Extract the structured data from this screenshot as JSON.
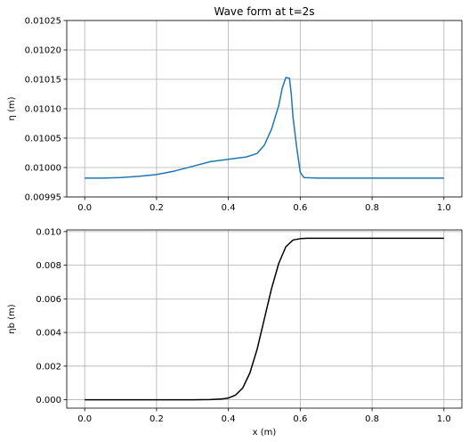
{
  "chart_data": [
    {
      "type": "line",
      "title": "Wave form at t=2s",
      "xlabel": "",
      "ylabel": "η (m)",
      "xlim": [
        -0.05,
        1.05
      ],
      "ylim": [
        0.00995,
        0.01025
      ],
      "grid": true,
      "xticks": [
        0.0,
        0.2,
        0.4,
        0.6,
        0.8,
        1.0
      ],
      "xtick_labels": [
        "0.0",
        "0.2",
        "0.4",
        "0.6",
        "0.8",
        "1.0"
      ],
      "yticks": [
        0.00995,
        0.01,
        0.01005,
        0.0101,
        0.01015,
        0.0102,
        0.01025
      ],
      "ytick_labels": [
        "0.00995",
        "0.01000",
        "0.01005",
        "0.01010",
        "0.01015",
        "0.01020",
        "0.01025"
      ],
      "series": [
        {
          "color": "#1f77b4",
          "x": [
            0.0,
            0.05,
            0.1,
            0.15,
            0.2,
            0.25,
            0.3,
            0.35,
            0.4,
            0.45,
            0.48,
            0.5,
            0.52,
            0.54,
            0.55,
            0.56,
            0.57,
            0.575,
            0.58,
            0.59,
            0.6,
            0.61,
            0.65,
            0.7,
            0.8,
            0.9,
            1.0
          ],
          "y": [
            0.009982,
            0.009982,
            0.009983,
            0.009985,
            0.009988,
            0.009994,
            0.010002,
            0.01001,
            0.010014,
            0.010018,
            0.010024,
            0.010038,
            0.010065,
            0.010105,
            0.010135,
            0.010153,
            0.010152,
            0.010125,
            0.010085,
            0.010035,
            0.009992,
            0.009983,
            0.009982,
            0.009982,
            0.009982,
            0.009982,
            0.009982
          ]
        }
      ]
    },
    {
      "type": "line",
      "title": "",
      "xlabel": "x (m)",
      "ylabel": "ηb (m)",
      "xlim": [
        -0.05,
        1.05
      ],
      "ylim": [
        -0.0005,
        0.0101
      ],
      "grid": true,
      "xticks": [
        0.0,
        0.2,
        0.4,
        0.6,
        0.8,
        1.0
      ],
      "xtick_labels": [
        "0.0",
        "0.2",
        "0.4",
        "0.6",
        "0.8",
        "1.0"
      ],
      "yticks": [
        0.0,
        0.002,
        0.004,
        0.006,
        0.008,
        0.01
      ],
      "ytick_labels": [
        "0.000",
        "0.002",
        "0.004",
        "0.006",
        "0.008",
        "0.010"
      ],
      "series": [
        {
          "color": "#000000",
          "x": [
            0.0,
            0.1,
            0.2,
            0.3,
            0.35,
            0.38,
            0.4,
            0.42,
            0.44,
            0.46,
            0.48,
            0.5,
            0.52,
            0.54,
            0.56,
            0.58,
            0.6,
            0.62,
            0.65,
            0.7,
            0.8,
            0.9,
            1.0
          ],
          "y": [
            0.0,
            0.0,
            0.0,
            0.0,
            1e-05,
            4e-05,
            0.0001,
            0.00028,
            0.0007,
            0.0016,
            0.003,
            0.0048,
            0.0066,
            0.0081,
            0.0091,
            0.0095,
            0.00958,
            0.0096,
            0.0096,
            0.0096,
            0.0096,
            0.0096,
            0.0096
          ]
        }
      ]
    }
  ]
}
